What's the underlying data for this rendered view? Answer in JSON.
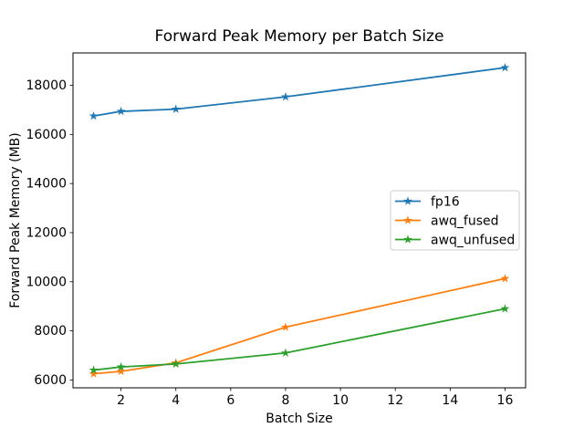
{
  "chart_data": {
    "type": "line",
    "title": "Forward Peak Memory per Batch Size",
    "xlabel": "Batch Size",
    "ylabel": "Forward Peak Memory (MB)",
    "x": [
      1,
      2,
      4,
      8,
      16
    ],
    "series": [
      {
        "name": "fp16",
        "color": "#1f77b4",
        "marker": "star",
        "values": [
          16750,
          16940,
          17030,
          17530,
          18720
        ]
      },
      {
        "name": "awq_fused",
        "color": "#ff7f0e",
        "marker": "star",
        "values": [
          6250,
          6350,
          6700,
          8150,
          10130
        ]
      },
      {
        "name": "awq_unfused",
        "color": "#2ca02c",
        "marker": "star",
        "values": [
          6400,
          6530,
          6650,
          7100,
          8900
        ]
      }
    ],
    "xticks": [
      2,
      4,
      6,
      8,
      10,
      12,
      14,
      16
    ],
    "yticks": [
      6000,
      8000,
      10000,
      12000,
      14000,
      16000,
      18000
    ],
    "xlim": [
      0.25,
      16.75
    ],
    "ylim": [
      5680,
      19320
    ],
    "grid": false,
    "legend": {
      "position": "center-right"
    },
    "colors": {
      "spine": "#000000",
      "legend_border": "#cccccc",
      "background": "#ffffff"
    }
  }
}
